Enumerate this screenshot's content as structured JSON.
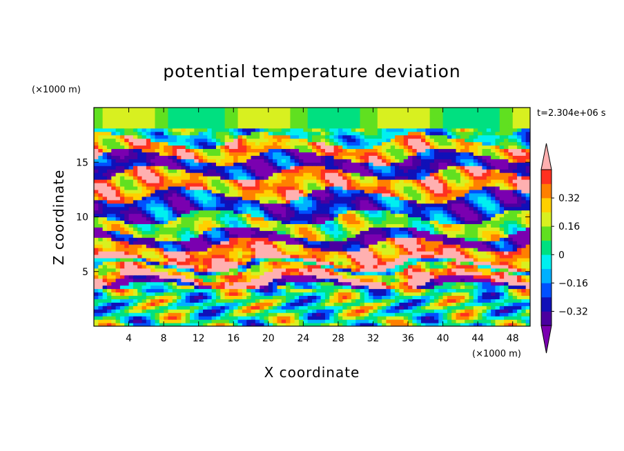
{
  "chart_data": {
    "type": "heatmap",
    "title": "potential temperature deviation",
    "xlabel": "X coordinate",
    "ylabel": "Z coordinate",
    "x_unit_label": "(×1000 m)",
    "y_unit_label": "(×1000 m)",
    "time_label": "t=2.304e+06 s",
    "xlim": [
      0,
      50
    ],
    "ylim": [
      0,
      20
    ],
    "x_ticks": [
      4,
      8,
      12,
      16,
      20,
      24,
      28,
      32,
      36,
      40,
      44,
      48
    ],
    "y_ticks": [
      5,
      10,
      15
    ],
    "colorbar": {
      "levels": [
        -0.48,
        -0.4,
        -0.32,
        -0.24,
        -0.16,
        -0.08,
        0,
        0.08,
        0.16,
        0.24,
        0.32,
        0.4,
        0.48
      ],
      "tick_labels": [
        "0.32",
        "0.16",
        "0",
        "−0.16",
        "−0.32"
      ],
      "tick_values": [
        0.32,
        0.16,
        0,
        -0.16,
        -0.32
      ],
      "colors": [
        "#7a00b0",
        "#4a00a0",
        "#1010b8",
        "#0050ff",
        "#00b0ff",
        "#00f0f0",
        "#00e080",
        "#60e020",
        "#d8f020",
        "#ffd000",
        "#ff8000",
        "#ff3020",
        "#ffb0b0"
      ],
      "extend": "both"
    },
    "bands": [
      {
        "z": [
          0.0,
          1.5
        ],
        "value": 0.05
      },
      {
        "z": [
          1.5,
          3.5
        ],
        "value": -0.02
      },
      {
        "z": [
          3.5,
          4.0
        ],
        "value": -0.45
      },
      {
        "z": [
          4.0,
          4.6
        ],
        "value": 0.5
      },
      {
        "z": [
          4.6,
          5.3
        ],
        "value": 0.25
      },
      {
        "z": [
          5.3,
          5.7
        ],
        "value": -0.1
      },
      {
        "z": [
          5.7,
          6.1
        ],
        "value": 0.5
      },
      {
        "z": [
          6.1,
          7.5
        ],
        "value": 0.35
      },
      {
        "z": [
          7.5,
          8.5
        ],
        "value": -0.4
      },
      {
        "z": [
          8.5,
          10.0
        ],
        "value": 0.1
      },
      {
        "z": [
          10.0,
          12.0
        ],
        "value": -0.3
      },
      {
        "z": [
          12.0,
          14.0
        ],
        "value": 0.3
      },
      {
        "z": [
          14.0,
          15.5
        ],
        "value": -0.35
      },
      {
        "z": [
          15.5,
          17.0
        ],
        "value": 0.28
      },
      {
        "z": [
          17.0,
          18.2
        ],
        "value": -0.1
      },
      {
        "z": [
          18.2,
          20.0
        ],
        "value": 0.08
      }
    ]
  }
}
